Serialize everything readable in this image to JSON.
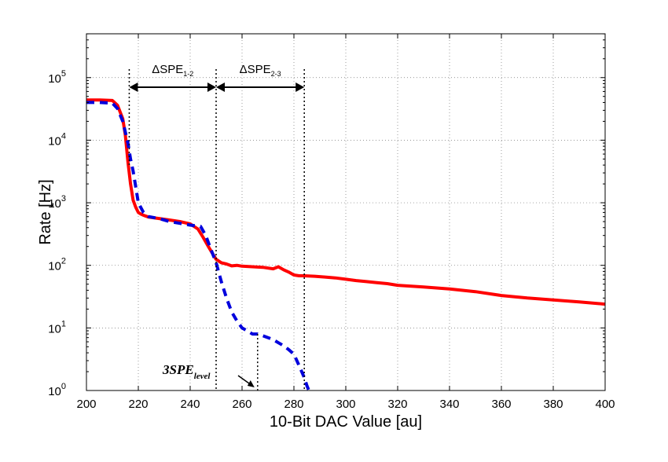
{
  "chart_data": {
    "type": "line",
    "title": "",
    "xlabel": "10-Bit DAC Value [au]",
    "ylabel": "Rate [Hz]",
    "xlim": [
      200,
      400
    ],
    "ylim_log10": [
      0,
      5.7
    ],
    "yscale": "log",
    "grid": true,
    "x_ticks": [
      200,
      220,
      240,
      260,
      280,
      300,
      320,
      340,
      360,
      380,
      400
    ],
    "y_ticks": [
      {
        "base": "10",
        "exp": "0",
        "value": 1
      },
      {
        "base": "10",
        "exp": "1",
        "value": 10
      },
      {
        "base": "10",
        "exp": "2",
        "value": 100
      },
      {
        "base": "10",
        "exp": "3",
        "value": 1000
      },
      {
        "base": "10",
        "exp": "4",
        "value": 10000
      },
      {
        "base": "10",
        "exp": "5",
        "value": 100000
      }
    ],
    "series": [
      {
        "name": "red-solid",
        "color": "#ff0000",
        "style": "solid",
        "x": [
          200,
          205,
          210,
          212,
          214,
          215,
          216,
          217,
          218,
          219,
          220,
          221,
          222,
          224,
          228,
          232,
          236,
          240,
          243,
          245,
          247,
          249,
          250,
          252,
          254,
          256,
          258,
          260,
          264,
          268,
          272,
          274,
          276,
          278,
          280,
          282,
          284,
          288,
          292,
          296,
          300,
          304,
          308,
          312,
          316,
          320,
          330,
          340,
          350,
          360,
          370,
          380,
          390,
          400
        ],
        "y": [
          44000,
          44000,
          43000,
          36000,
          22000,
          12000,
          4500,
          2000,
          1100,
          850,
          700,
          660,
          630,
          590,
          560,
          530,
          500,
          460,
          380,
          280,
          200,
          145,
          125,
          110,
          105,
          98,
          100,
          97,
          95,
          93,
          88,
          95,
          85,
          78,
          70,
          68,
          68,
          67,
          65,
          63,
          60,
          57,
          55,
          53,
          51,
          48,
          45,
          42,
          38,
          33,
          30,
          28,
          26,
          24
        ]
      },
      {
        "name": "blue-dashed",
        "color": "#0000dd",
        "style": "dashed",
        "x": [
          200,
          205,
          210,
          212,
          214,
          216,
          217,
          218,
          219,
          220,
          222,
          224,
          228,
          232,
          236,
          240,
          244,
          246,
          248,
          250,
          252,
          254,
          256,
          258,
          260,
          262,
          264,
          266,
          268,
          270,
          272,
          274,
          276,
          278,
          280,
          282,
          284,
          285,
          286
        ],
        "y": [
          40000,
          40000,
          39000,
          32000,
          20000,
          9000,
          5000,
          3200,
          1800,
          1000,
          700,
          600,
          560,
          500,
          470,
          440,
          420,
          300,
          180,
          110,
          55,
          30,
          18,
          13,
          10,
          9,
          8,
          8,
          7.5,
          7,
          6.5,
          5.8,
          5.2,
          4.5,
          3.8,
          2.5,
          1.6,
          1.2,
          0.95
        ]
      }
    ],
    "annotations": {
      "spe12": {
        "label": "ΔSPE",
        "sub": "1-2",
        "x_from": 216.5,
        "x_to": 250
      },
      "spe23": {
        "label": "ΔSPE",
        "sub": "2-3",
        "x_from": 250,
        "x_to": 284
      },
      "spe_level": {
        "label": "3SPE",
        "sub": "level",
        "x": 266
      }
    }
  }
}
